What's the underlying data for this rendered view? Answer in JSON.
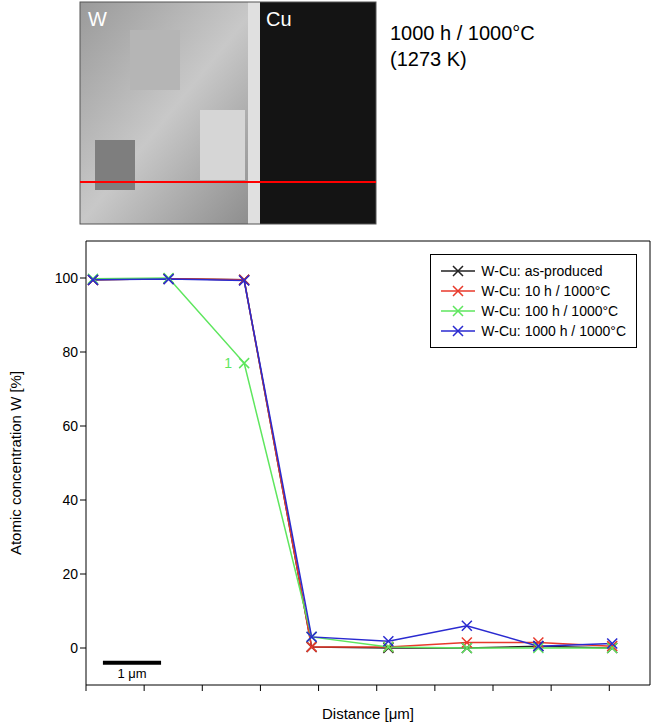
{
  "chart_data": {
    "type": "line",
    "x": [
      0.12,
      1.42,
      2.72,
      3.88,
      5.2,
      6.55,
      7.78,
      9.05
    ],
    "series": [
      {
        "name": "W-Cu: as-produced",
        "color": "#222222",
        "marker": "x",
        "values": [
          99.5,
          99.8,
          99.5,
          0.3,
          0.0,
          0.0,
          0.5,
          0.0
        ]
      },
      {
        "name": "W-Cu: 10 h / 1000°C",
        "color": "#e8392b",
        "marker": "x",
        "values": [
          99.5,
          99.8,
          99.5,
          0.3,
          0.3,
          1.5,
          1.5,
          0.5
        ]
      },
      {
        "name": "W-Cu: 100 h / 1000°C",
        "color": "#5ee65e",
        "marker": "x",
        "values": [
          99.8,
          100.0,
          77.0,
          3.0,
          0.3,
          0.0,
          0.0,
          0.0
        ]
      },
      {
        "name": "W-Cu: 1000 h / 1000°C",
        "color": "#2a2ad0",
        "marker": "x",
        "values": [
          99.5,
          99.7,
          99.3,
          3.0,
          1.8,
          6.0,
          0.5,
          1.2
        ]
      }
    ],
    "xlabel": "Distance [μm]",
    "ylabel": "Atomic concentration W [%]",
    "xlim": [
      0,
      9.7
    ],
    "xticks": [
      0,
      1,
      2,
      3,
      4,
      5,
      6,
      7,
      8,
      9
    ],
    "ylim": [
      -10,
      110
    ],
    "yticks": [
      0,
      20,
      40,
      60,
      80,
      100
    ],
    "tick_labels": "y",
    "legend": "upper right",
    "grid": false,
    "annotation": {
      "text": "1",
      "x": 2.72,
      "y": 77.0,
      "color": "#5ee65e"
    },
    "scale_bar": {
      "length": 1,
      "label": "1 μm"
    },
    "micrograph": {
      "labels": [
        "W",
        "Cu"
      ],
      "caption": [
        "1000 h / 1000°C",
        "(1273 K)"
      ]
    }
  }
}
